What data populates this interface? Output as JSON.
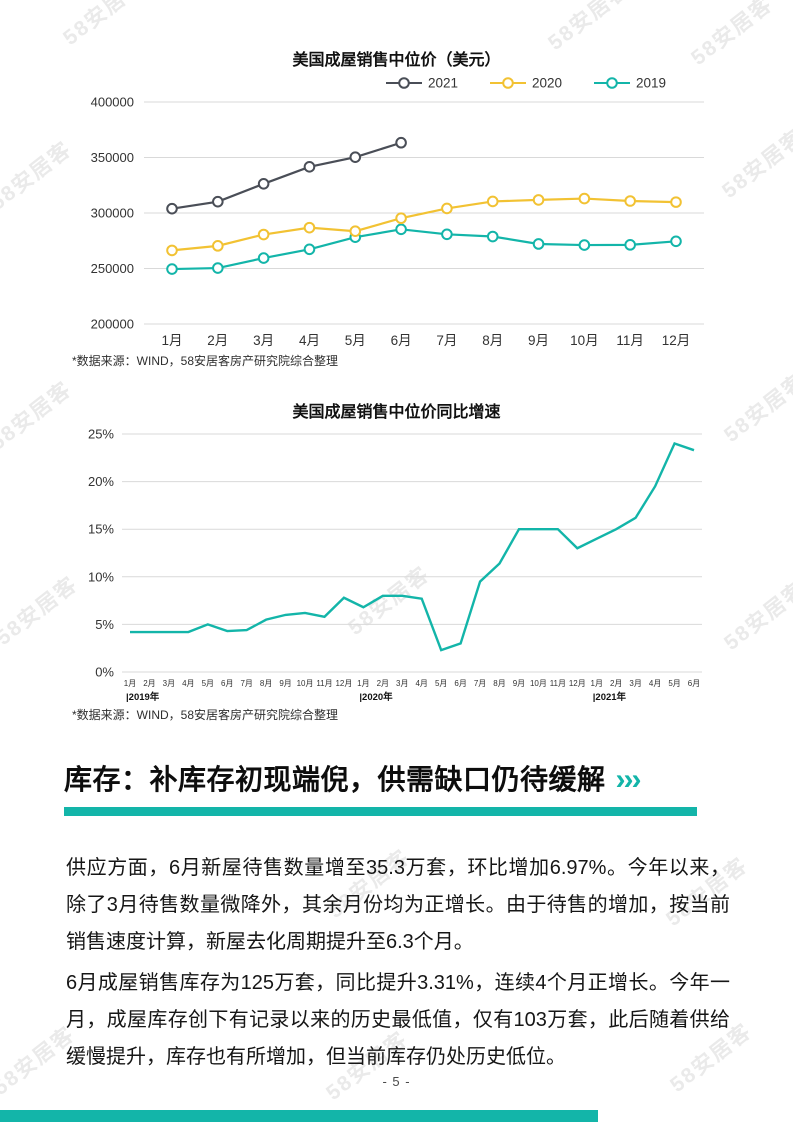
{
  "page": {
    "footer": "- 5 -"
  },
  "watermark_text": "58安居客",
  "colors": {
    "teal": "#13b5a9",
    "yellow": "#f2c233",
    "dark": "#4a4e57"
  },
  "section": {
    "heading": "库存：补库存初现端倪，供需缺口仍待缓解",
    "arrows": "›››"
  },
  "paragraphs": {
    "p1": "供应方面，6月新屋待售数量增至35.3万套，环比增加6.97%。今年以来，除了3月待售数量微降外，其余月份均为正增长。由于待售的增加，按当前销售速度计算，新屋去化周期提升至6.3个月。",
    "p2": "6月成屋销售库存为125万套，同比提升3.31%，连续4个月正增长。今年一月，成屋库存创下有记录以来的历史最低值，仅有103万套，此后随着供给缓慢提升，库存也有所增加，但当前库存仍处历史低位。"
  },
  "chart_data": [
    {
      "type": "line",
      "title": "美国成屋销售中位价（美元）",
      "categories": [
        "1月",
        "2月",
        "3月",
        "4月",
        "5月",
        "6月",
        "7月",
        "8月",
        "9月",
        "10月",
        "11月",
        "12月"
      ],
      "series": [
        {
          "name": "2021",
          "color": "#4a4e57",
          "values": [
            303900,
            310200,
            326300,
            341600,
            350300,
            363300
          ]
        },
        {
          "name": "2020",
          "color": "#f2c233",
          "values": [
            266300,
            270400,
            280600,
            286800,
            283600,
            295300,
            304100,
            310400,
            311800,
            313000,
            310800,
            309800
          ]
        },
        {
          "name": "2019",
          "color": "#13b5a9",
          "values": [
            249500,
            250400,
            259400,
            267300,
            278200,
            285300,
            280800,
            278800,
            272100,
            271100,
            271300,
            274500
          ]
        }
      ],
      "ylim": [
        200000,
        400000
      ],
      "ytick_step": 50000,
      "grid": true,
      "legend_position": "top-right",
      "markers": "circle",
      "source_note": "*数据来源：WIND，58安居客房产研究院综合整理"
    },
    {
      "type": "line",
      "title": "美国成屋销售中位价同比增速",
      "x_labels": [
        "1月",
        "2月",
        "3月",
        "4月",
        "5月",
        "6月",
        "7月",
        "8月",
        "9月",
        "10月",
        "11月",
        "12月",
        "1月",
        "2月",
        "3月",
        "4月",
        "5月",
        "6月",
        "7月",
        "8月",
        "9月",
        "10月",
        "11月",
        "12月",
        "1月",
        "2月",
        "3月",
        "4月",
        "5月",
        "6月"
      ],
      "year_markers": [
        {
          "label": "|2019年",
          "index": 0
        },
        {
          "label": "|2020年",
          "index": 12
        },
        {
          "label": "|2021年",
          "index": 24
        }
      ],
      "series": [
        {
          "name": "同比增速",
          "color": "#13b5a9",
          "values": [
            4.2,
            4.2,
            4.2,
            4.2,
            5.0,
            4.3,
            4.4,
            5.5,
            6.0,
            6.2,
            5.8,
            7.8,
            6.8,
            8.0,
            8.0,
            7.7,
            2.3,
            3.0,
            9.5,
            11.4,
            15.0,
            15.0,
            15.0,
            13.0,
            14.0,
            15.0,
            16.2,
            19.5,
            24.0,
            23.3
          ]
        }
      ],
      "ylim": [
        0,
        25
      ],
      "ytick_step": 5,
      "y_format": "percent",
      "grid": true,
      "legend_position": "none",
      "source_note": "*数据来源：WIND，58安居客房产研究院综合整理"
    }
  ]
}
